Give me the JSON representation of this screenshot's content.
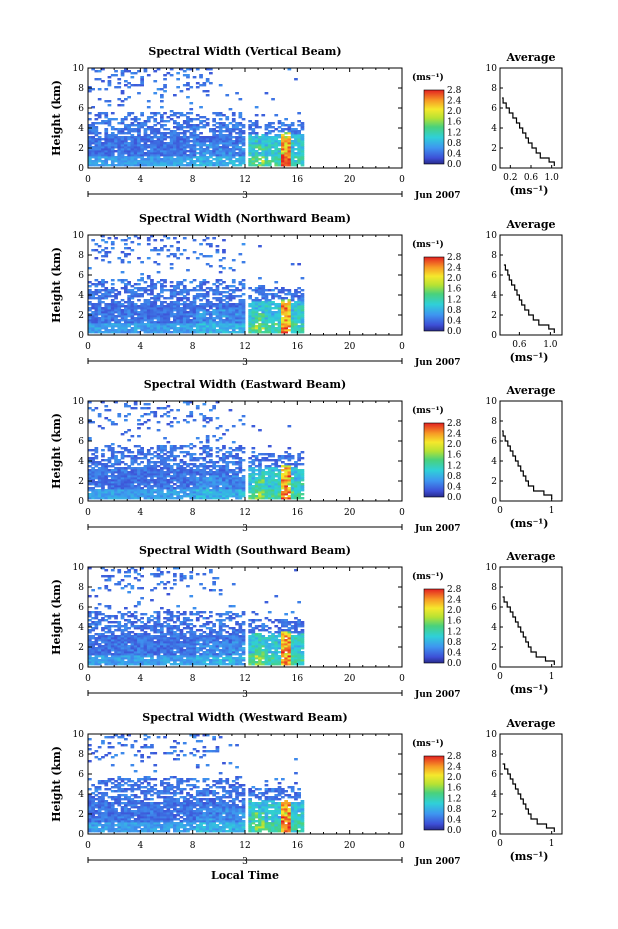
{
  "figure": {
    "x_axis_label": "Local Time",
    "date_label": "Jun 2007",
    "day_marker": "3",
    "colorbar_unit": "(ms⁻¹)",
    "avg_unit": "(ms⁻¹)",
    "avg_title": "Average",
    "y_axis_label": "Height (km)"
  },
  "chart_data": [
    {
      "type": "heatmap",
      "title": "Spectral Width (Vertical Beam)",
      "xlabel": "Local Time",
      "ylabel": "Height (km)",
      "x_ticks": [
        "0",
        "4",
        "8",
        "12",
        "16",
        "20",
        "0"
      ],
      "x_range_hours": [
        0,
        24
      ],
      "y_ticks": [
        "0",
        "2",
        "4",
        "6",
        "8",
        "10"
      ],
      "ylim": [
        0,
        10
      ],
      "data_time_range_hours": [
        0,
        16.5
      ],
      "gap_at_hours": 12,
      "colorbar": {
        "label": "(ms⁻¹)",
        "ticks": [
          "0.0",
          "0.4",
          "0.8",
          "1.2",
          "1.6",
          "2.0",
          "2.4",
          "2.8"
        ],
        "range": [
          0,
          2.8
        ]
      },
      "average_profile": {
        "title": "Average",
        "xlabel": "(ms⁻¹)",
        "x_ticks": [
          "0.2",
          "0.6",
          "1.0"
        ],
        "xlim": [
          0,
          1.2
        ],
        "y_ticks": [
          "0",
          "2",
          "4",
          "6",
          "8",
          "10"
        ],
        "ylim": [
          0,
          10
        ],
        "heights": [
          0.2,
          0.6,
          1.0,
          1.5,
          2.0,
          2.5,
          3.0,
          3.5,
          4.0,
          4.5,
          5.0,
          5.5,
          6.0,
          6.5,
          7.0
        ],
        "values": [
          1.05,
          0.95,
          0.78,
          0.7,
          0.62,
          0.55,
          0.5,
          0.44,
          0.38,
          0.32,
          0.25,
          0.18,
          0.12,
          0.06,
          0.04
        ]
      }
    },
    {
      "type": "heatmap",
      "title": "Spectral Width (Northward Beam)",
      "xlabel": "Local Time",
      "ylabel": "Height (km)",
      "x_ticks": [
        "0",
        "4",
        "8",
        "12",
        "16",
        "20",
        "0"
      ],
      "x_range_hours": [
        0,
        24
      ],
      "y_ticks": [
        "0",
        "2",
        "4",
        "6",
        "8",
        "10"
      ],
      "ylim": [
        0,
        10
      ],
      "data_time_range_hours": [
        0,
        16.5
      ],
      "gap_at_hours": 12,
      "colorbar": {
        "label": "(ms⁻¹)",
        "ticks": [
          "0.0",
          "0.4",
          "0.8",
          "1.2",
          "1.6",
          "2.0",
          "2.4",
          "2.8"
        ],
        "range": [
          0,
          2.8
        ]
      },
      "average_profile": {
        "title": "Average",
        "xlabel": "(ms⁻¹)",
        "x_ticks": [
          "0.6",
          "1.0"
        ],
        "xlim": [
          0.35,
          1.15
        ],
        "y_ticks": [
          "0",
          "2",
          "4",
          "6",
          "8",
          "10"
        ],
        "ylim": [
          0,
          10
        ],
        "heights": [
          0.2,
          0.6,
          1.0,
          1.5,
          2.0,
          2.5,
          3.0,
          3.5,
          4.0,
          4.5,
          5.0,
          5.5,
          6.0,
          6.5,
          7.0
        ],
        "values": [
          1.05,
          0.98,
          0.85,
          0.78,
          0.72,
          0.67,
          0.63,
          0.6,
          0.57,
          0.54,
          0.5,
          0.47,
          0.45,
          0.42,
          0.4
        ]
      }
    },
    {
      "type": "heatmap",
      "title": "Spectral Width (Eastward Beam)",
      "xlabel": "Local Time",
      "ylabel": "Height (km)",
      "x_ticks": [
        "0",
        "4",
        "8",
        "12",
        "16",
        "20",
        "0"
      ],
      "x_range_hours": [
        0,
        24
      ],
      "y_ticks": [
        "0",
        "2",
        "4",
        "6",
        "8",
        "10"
      ],
      "ylim": [
        0,
        10
      ],
      "data_time_range_hours": [
        0,
        16.5
      ],
      "gap_at_hours": 12,
      "colorbar": {
        "label": "(ms⁻¹)",
        "ticks": [
          "0.0",
          "0.4",
          "0.8",
          "1.2",
          "1.6",
          "2.0",
          "2.4",
          "2.8"
        ],
        "range": [
          0,
          2.8
        ]
      },
      "average_profile": {
        "title": "Average",
        "xlabel": "(ms⁻¹)",
        "x_ticks": [
          "0",
          "1"
        ],
        "xlim": [
          0,
          1.2
        ],
        "y_ticks": [
          "0",
          "2",
          "4",
          "6",
          "8",
          "10"
        ],
        "ylim": [
          0,
          10
        ],
        "heights": [
          0.2,
          0.6,
          1.0,
          1.5,
          2.0,
          2.5,
          3.0,
          3.5,
          4.0,
          4.5,
          5.0,
          5.5,
          6.0,
          6.5,
          7.0
        ],
        "values": [
          1.0,
          0.85,
          0.65,
          0.55,
          0.5,
          0.45,
          0.4,
          0.35,
          0.3,
          0.25,
          0.2,
          0.15,
          0.1,
          0.06,
          0.04
        ]
      }
    },
    {
      "type": "heatmap",
      "title": "Spectral Width (Southward Beam)",
      "xlabel": "Local Time",
      "ylabel": "Height (km)",
      "x_ticks": [
        "0",
        "4",
        "8",
        "12",
        "16",
        "20",
        "0"
      ],
      "x_range_hours": [
        0,
        24
      ],
      "y_ticks": [
        "0",
        "2",
        "4",
        "6",
        "8",
        "10"
      ],
      "ylim": [
        0,
        10
      ],
      "data_time_range_hours": [
        0,
        16.5
      ],
      "gap_at_hours": 12,
      "colorbar": {
        "label": "(ms⁻¹)",
        "ticks": [
          "0.0",
          "0.4",
          "0.8",
          "1.2",
          "1.6",
          "2.0",
          "2.4",
          "2.8"
        ],
        "range": [
          0,
          2.8
        ]
      },
      "average_profile": {
        "title": "Average",
        "xlabel": "(ms⁻¹)",
        "x_ticks": [
          "0",
          "1"
        ],
        "xlim": [
          0,
          1.2
        ],
        "y_ticks": [
          "0",
          "2",
          "4",
          "6",
          "8",
          "10"
        ],
        "ylim": [
          0,
          10
        ],
        "heights": [
          0.2,
          0.6,
          1.0,
          1.5,
          2.0,
          2.5,
          3.0,
          3.5,
          4.0,
          4.5,
          5.0,
          5.5,
          6.0,
          6.5,
          7.0
        ],
        "values": [
          1.05,
          0.88,
          0.7,
          0.6,
          0.55,
          0.5,
          0.45,
          0.4,
          0.35,
          0.3,
          0.25,
          0.2,
          0.14,
          0.08,
          0.05
        ]
      }
    },
    {
      "type": "heatmap",
      "title": "Spectral Width (Westward Beam)",
      "xlabel": "Local Time",
      "ylabel": "Height (km)",
      "x_ticks": [
        "0",
        "4",
        "8",
        "12",
        "16",
        "20",
        "0"
      ],
      "x_range_hours": [
        0,
        24
      ],
      "y_ticks": [
        "0",
        "2",
        "4",
        "6",
        "8",
        "10"
      ],
      "ylim": [
        0,
        10
      ],
      "data_time_range_hours": [
        0,
        16.5
      ],
      "gap_at_hours": 12,
      "colorbar": {
        "label": "(ms⁻¹)",
        "ticks": [
          "0.0",
          "0.4",
          "0.8",
          "1.2",
          "1.6",
          "2.0",
          "2.4",
          "2.8"
        ],
        "range": [
          0,
          2.8
        ]
      },
      "average_profile": {
        "title": "Average",
        "xlabel": "(ms⁻¹)",
        "x_ticks": [
          "0",
          "1"
        ],
        "xlim": [
          0,
          1.2
        ],
        "y_ticks": [
          "0",
          "2",
          "4",
          "6",
          "8",
          "10"
        ],
        "ylim": [
          0,
          10
        ],
        "heights": [
          0.2,
          0.6,
          1.0,
          1.5,
          2.0,
          2.5,
          3.0,
          3.5,
          4.0,
          4.5,
          5.0,
          5.5,
          6.0,
          6.5,
          7.0
        ],
        "values": [
          1.05,
          0.9,
          0.72,
          0.6,
          0.55,
          0.5,
          0.45,
          0.4,
          0.35,
          0.3,
          0.25,
          0.2,
          0.15,
          0.09,
          0.05
        ]
      }
    }
  ]
}
